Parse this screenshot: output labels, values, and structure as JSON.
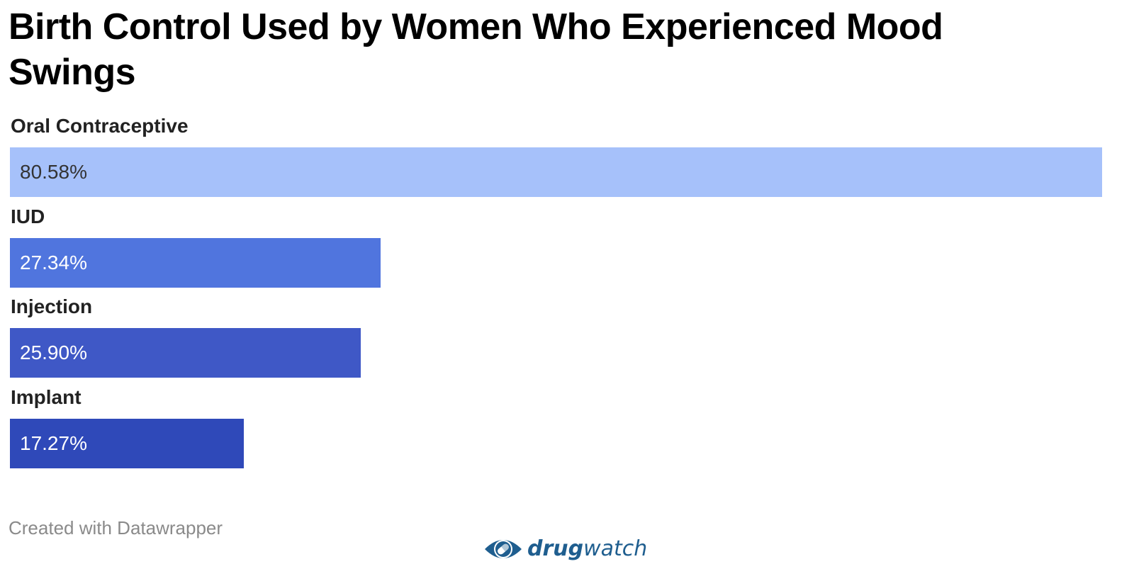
{
  "chart_data": {
    "type": "bar",
    "orientation": "horizontal",
    "title": "Birth Control Used by Women Who Experienced Mood Swings",
    "categories": [
      "Oral Contraceptive",
      "IUD",
      "Injection",
      "Implant"
    ],
    "values": [
      80.58,
      27.34,
      25.9,
      17.27
    ],
    "value_labels": [
      "80.58%",
      "27.34%",
      "25.90%",
      "17.27%"
    ],
    "unit": "%",
    "xlim": [
      0,
      80.58
    ],
    "grid": false,
    "legend": "none",
    "colors": [
      "#a6c1fa",
      "#5075de",
      "#3f58c6",
      "#2f49b9"
    ],
    "value_label_colors": [
      "#333333",
      "#ffffff",
      "#ffffff",
      "#ffffff"
    ]
  },
  "footer": {
    "credit": "Created with Datawrapper",
    "brand_bold": "drug",
    "brand_light": "watch",
    "brand_icon": "eye-pill-icon",
    "brand_color": "#1f5e8f"
  }
}
